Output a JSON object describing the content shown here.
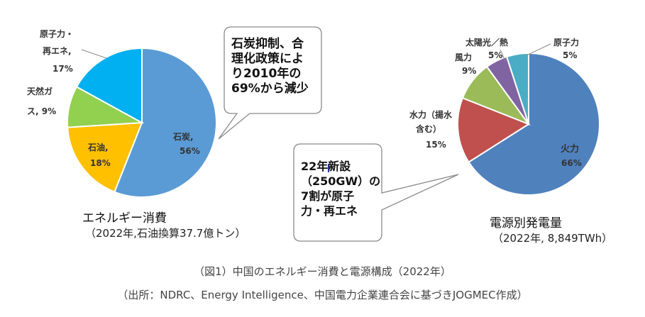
{
  "chart_data": [
    {
      "type": "pie",
      "title": "エネルギー消費",
      "subtitle": "（2022年,石油換算37.7億トン）",
      "slices": [
        {
          "label": "石炭,",
          "value": 56,
          "value_text": "56%",
          "color": "#5b9bd5"
        },
        {
          "label": "石油,",
          "value": 18,
          "value_text": "18%",
          "color": "#ffc000"
        },
        {
          "label": "天然ガス, 9%",
          "value": 9,
          "value_text": "",
          "color": "#92d050"
        },
        {
          "label": "原子力・再エネ,",
          "value": 17,
          "value_text": "17%",
          "color": "#00b0f0"
        }
      ],
      "callout": [
        "石炭抑制、合",
        "理化政策によ",
        "り2010年の",
        "69%から減少"
      ]
    },
    {
      "type": "pie",
      "title": "電源別発電量",
      "subtitle": "（2022年, 8,849TWh）",
      "slices": [
        {
          "label": "火力",
          "value": 66,
          "value_text": "66%",
          "color": "#4f81bd"
        },
        {
          "label": "水力（揚水含む）",
          "value": 15,
          "value_text": "15%",
          "color": "#c0504d"
        },
        {
          "label": "風力",
          "value": 9,
          "value_text": "9%",
          "color": "#9bbb59"
        },
        {
          "label": "太陽光／熱",
          "value": 5,
          "value_text": "5%",
          "color": "#8064a2"
        },
        {
          "label": "原子力",
          "value": 5,
          "value_text": "5%",
          "color": "#4bacc6"
        }
      ],
      "callout": [
        "22年新設",
        "（250GW）の",
        "7割が原子",
        "力・再エネ"
      ]
    }
  ],
  "caption_line1": "（図1）中国のエネルギー消費と電源構成（2022年）",
  "caption_line2": "（出所：NDRC、Energy Intelligence、中国電力企業連合会に基づきJOGMEC作成）"
}
